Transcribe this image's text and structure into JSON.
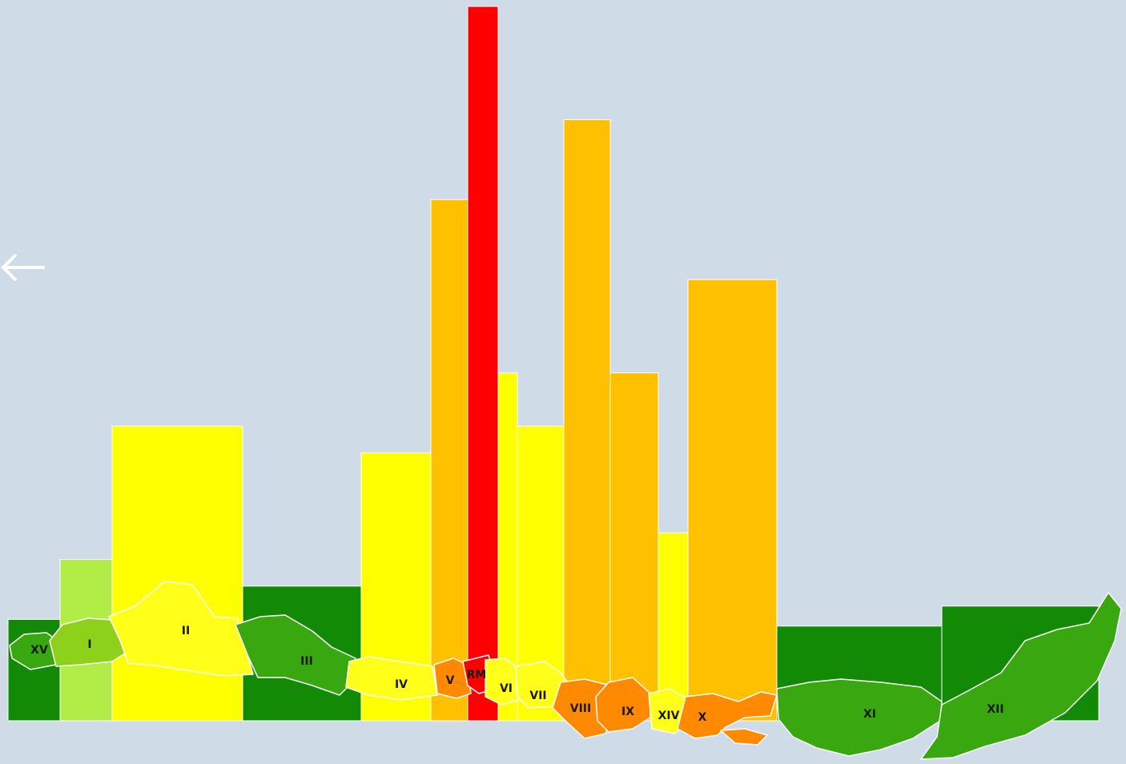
{
  "chart_data": {
    "type": "bar",
    "title": "",
    "xlabel": "",
    "ylabel": "",
    "grid": false,
    "legend": "none",
    "categories": [
      "XV",
      "I",
      "II",
      "III",
      "IV",
      "V",
      "RM",
      "VI",
      "VII",
      "VIII",
      "IX",
      "XIV",
      "X",
      "XI",
      "XII"
    ],
    "values": [
      8,
      17,
      37,
      13,
      33,
      71,
      100,
      45,
      37,
      83,
      45,
      21,
      59,
      7,
      10
    ],
    "colors": [
      "#138a05",
      "#b2ec46",
      "#ffff00",
      "#138a05",
      "#ffff00",
      "#ffc000",
      "#ff0000",
      "#ffff00",
      "#ffff00",
      "#ffc000",
      "#ffc000",
      "#ffff00",
      "#ffc000",
      "#138a05",
      "#138a05"
    ],
    "map_colors": [
      "#39a70f",
      "#8ed11b",
      "#ffff1a",
      "#39a70f",
      "#ffff1a",
      "#ff8a00",
      "#ff0000",
      "#ffff1a",
      "#ffff1a",
      "#ff8a00",
      "#ff8a00",
      "#ffff1a",
      "#ff8a00",
      "#39a70f",
      "#39a70f"
    ],
    "ylim": [
      0,
      100
    ]
  },
  "ui": {
    "background": "#cfdbe6",
    "back_icon": "arrow-left-icon"
  }
}
